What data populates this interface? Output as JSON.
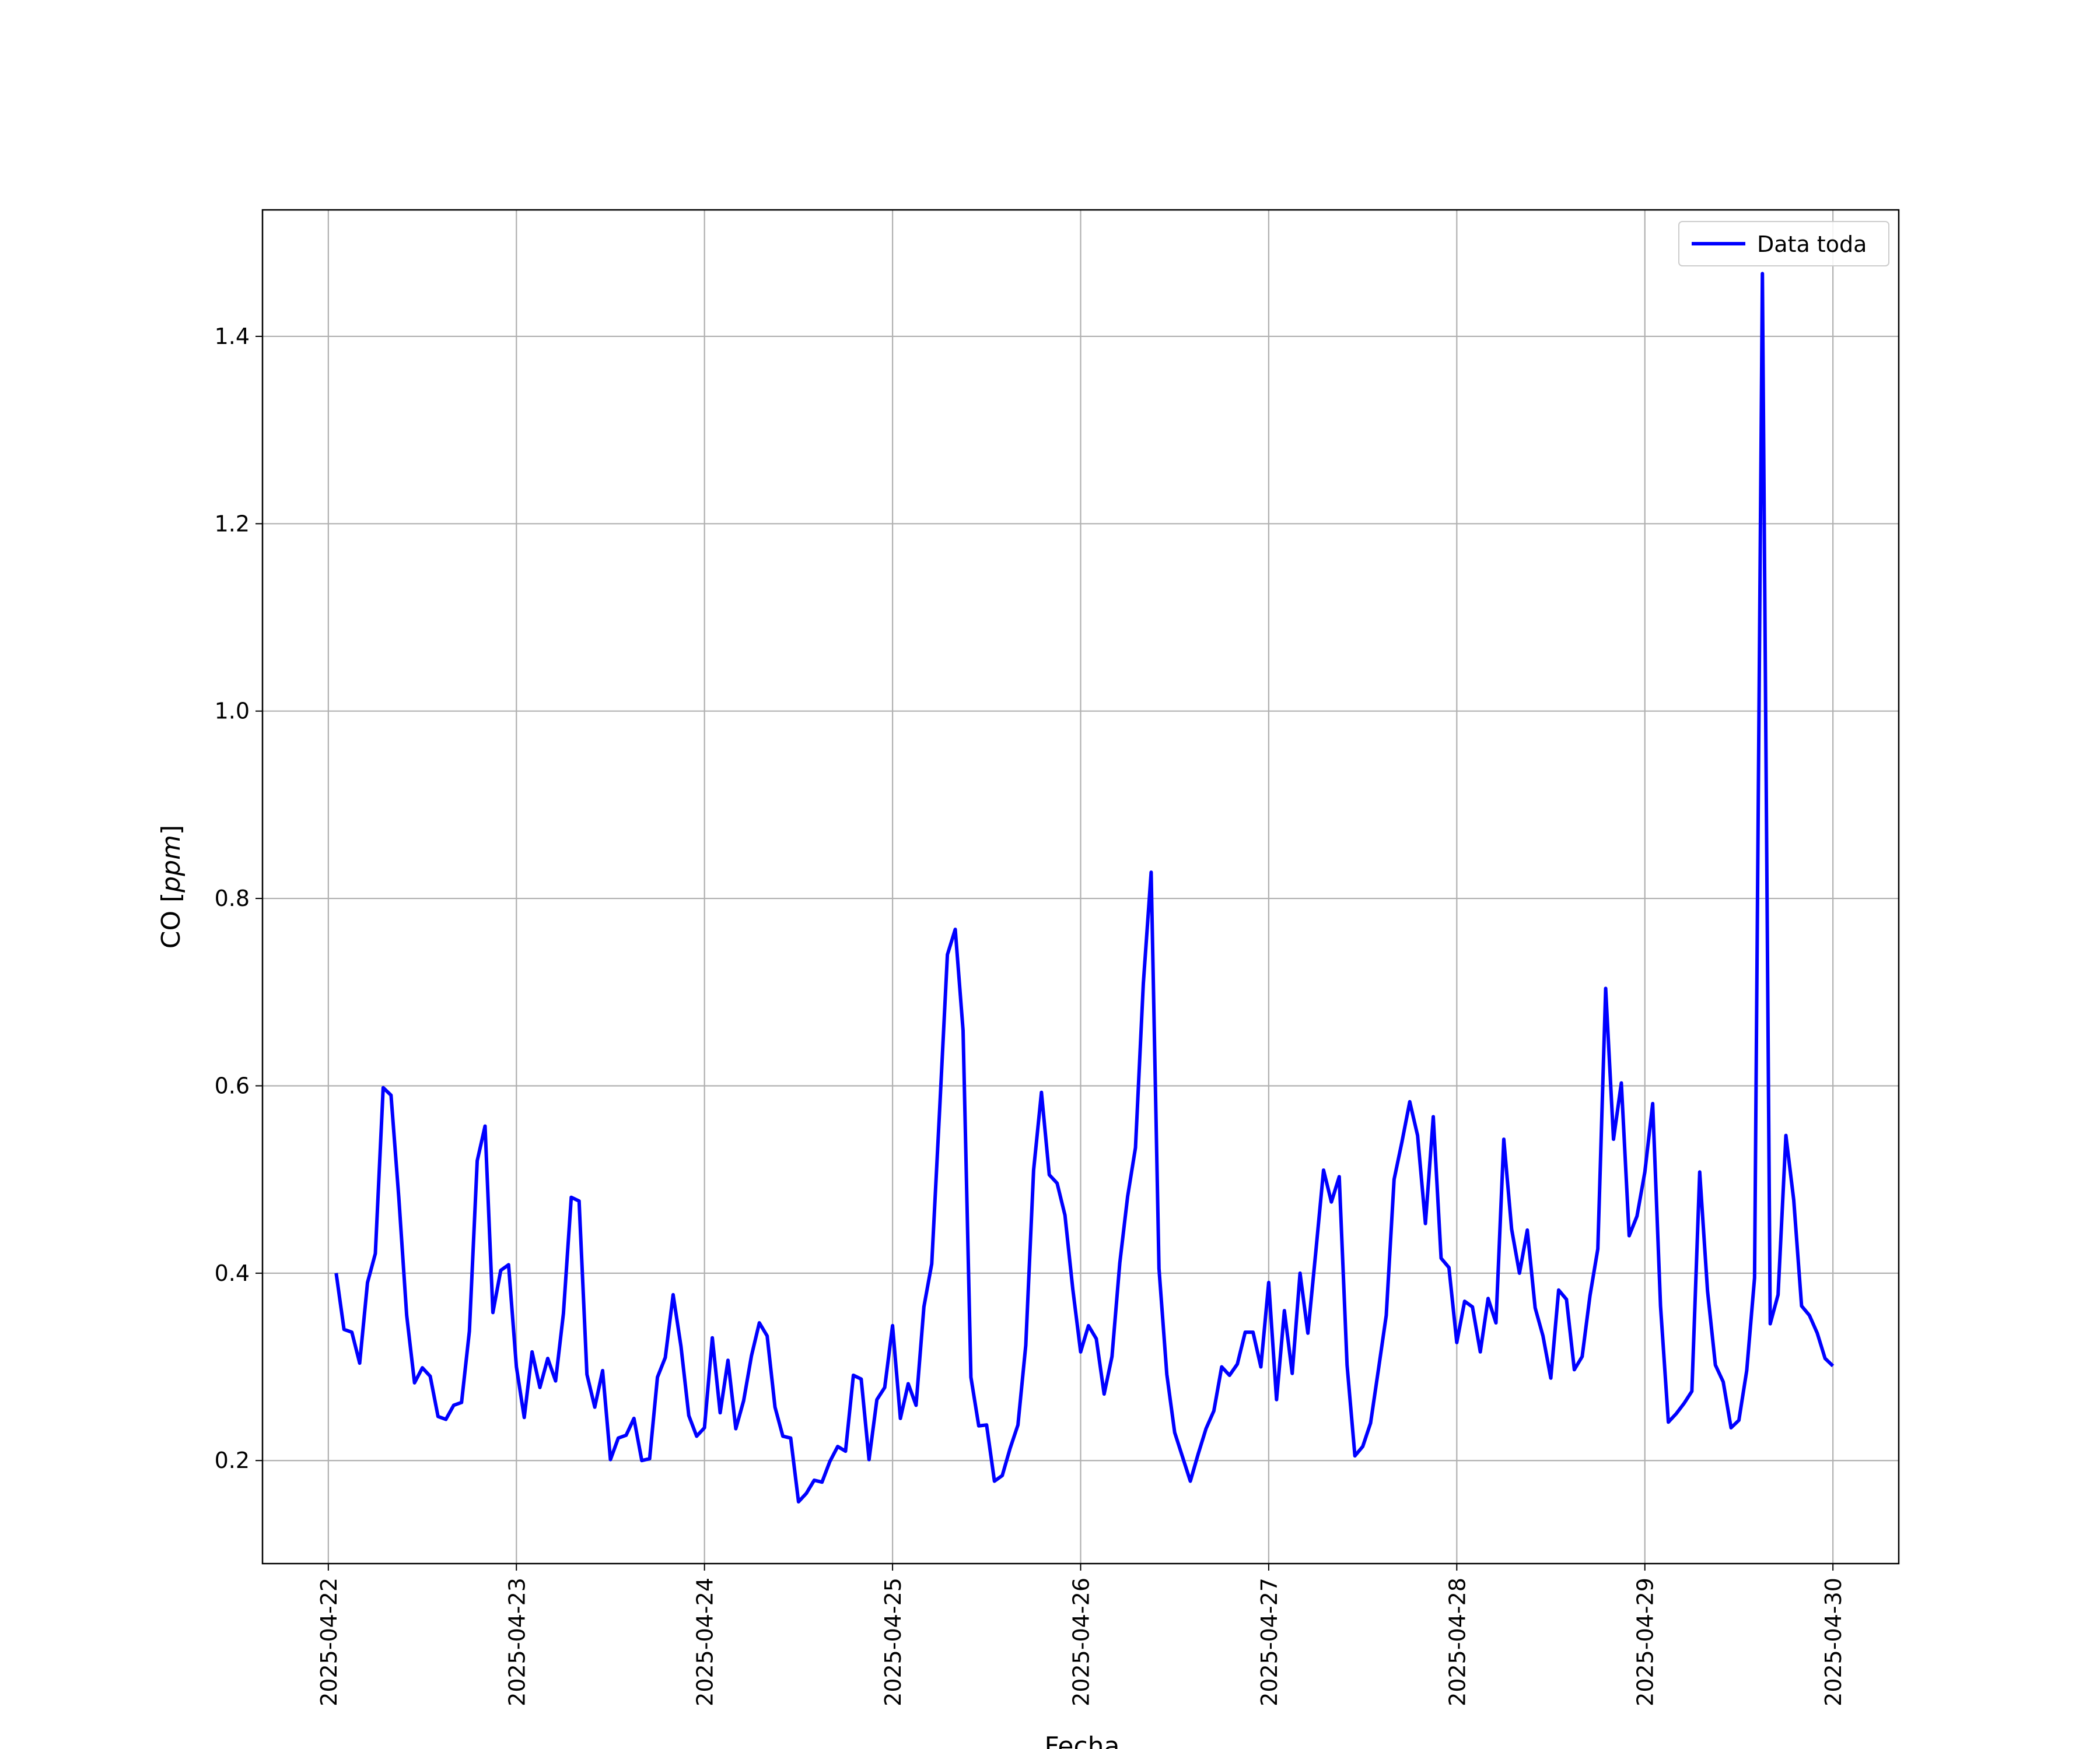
{
  "chart_data": {
    "type": "line",
    "xlabel": "Fecha",
    "ylabel_text": "CO",
    "ylabel_unit": "ppm",
    "ylim": [
      0.09,
      1.535
    ],
    "xlim": [
      "2025-04-21T15:36",
      "2025-04-30T08:24"
    ],
    "grid": true,
    "legend_placement": "top-right",
    "x_ticks": [
      "2025-04-22",
      "2025-04-23",
      "2025-04-24",
      "2025-04-25",
      "2025-04-26",
      "2025-04-27",
      "2025-04-28",
      "2025-04-29",
      "2025-04-30"
    ],
    "y_ticks": [
      "0.2",
      "0.4",
      "0.6",
      "0.8",
      "1.0",
      "1.2",
      "1.4"
    ],
    "x_start": "2025-04-22T01:00",
    "x_step_hours": 1,
    "series": [
      {
        "name": "Data toda",
        "color": "#0000ff",
        "x": [
          "2025-04-22T01:00",
          "2025-04-22T02:00",
          "2025-04-22T03:00",
          "2025-04-22T04:00",
          "2025-04-22T05:00",
          "2025-04-22T06:00",
          "2025-04-22T07:00",
          "2025-04-22T08:00",
          "2025-04-22T09:00",
          "2025-04-22T10:00",
          "2025-04-22T11:00",
          "2025-04-22T12:00",
          "2025-04-22T13:00",
          "2025-04-22T14:00",
          "2025-04-22T15:00",
          "2025-04-22T16:00",
          "2025-04-22T17:00",
          "2025-04-22T18:00",
          "2025-04-22T19:00",
          "2025-04-22T20:00",
          "2025-04-22T21:00",
          "2025-04-22T22:00",
          "2025-04-22T23:00",
          "2025-04-23T00:00",
          "2025-04-23T01:00",
          "2025-04-23T02:00",
          "2025-04-23T03:00",
          "2025-04-23T04:00",
          "2025-04-23T05:00",
          "2025-04-23T06:00",
          "2025-04-23T07:00",
          "2025-04-23T08:00",
          "2025-04-23T09:00",
          "2025-04-23T10:00",
          "2025-04-23T11:00",
          "2025-04-23T12:00",
          "2025-04-23T13:00",
          "2025-04-23T14:00",
          "2025-04-23T15:00",
          "2025-04-23T16:00",
          "2025-04-23T17:00",
          "2025-04-23T18:00",
          "2025-04-23T19:00",
          "2025-04-23T20:00",
          "2025-04-23T21:00",
          "2025-04-23T22:00",
          "2025-04-23T23:00",
          "2025-04-24T00:00",
          "2025-04-24T01:00",
          "2025-04-24T02:00",
          "2025-04-24T03:00",
          "2025-04-24T04:00",
          "2025-04-24T05:00",
          "2025-04-24T06:00",
          "2025-04-24T07:00",
          "2025-04-24T08:00",
          "2025-04-24T09:00",
          "2025-04-24T10:00",
          "2025-04-24T11:00",
          "2025-04-24T12:00",
          "2025-04-24T13:00",
          "2025-04-24T14:00",
          "2025-04-24T15:00",
          "2025-04-24T16:00",
          "2025-04-24T17:00",
          "2025-04-24T18:00",
          "2025-04-24T19:00",
          "2025-04-24T20:00",
          "2025-04-24T21:00",
          "2025-04-24T22:00",
          "2025-04-24T23:00",
          "2025-04-25T00:00",
          "2025-04-25T01:00",
          "2025-04-25T02:00",
          "2025-04-25T03:00",
          "2025-04-25T04:00",
          "2025-04-25T05:00",
          "2025-04-25T06:00",
          "2025-04-25T07:00",
          "2025-04-25T08:00",
          "2025-04-25T09:00",
          "2025-04-25T10:00",
          "2025-04-25T11:00",
          "2025-04-25T12:00",
          "2025-04-25T13:00",
          "2025-04-25T14:00",
          "2025-04-25T15:00",
          "2025-04-25T16:00",
          "2025-04-25T17:00",
          "2025-04-25T18:00",
          "2025-04-25T19:00",
          "2025-04-25T20:00",
          "2025-04-25T21:00",
          "2025-04-25T22:00",
          "2025-04-25T23:00",
          "2025-04-26T00:00",
          "2025-04-26T01:00",
          "2025-04-26T02:00",
          "2025-04-26T03:00",
          "2025-04-26T04:00",
          "2025-04-26T05:00",
          "2025-04-26T06:00",
          "2025-04-26T07:00",
          "2025-04-26T08:00",
          "2025-04-26T09:00",
          "2025-04-26T10:00",
          "2025-04-26T11:00",
          "2025-04-26T12:00",
          "2025-04-26T13:00",
          "2025-04-26T14:00",
          "2025-04-26T15:00",
          "2025-04-26T16:00",
          "2025-04-26T17:00",
          "2025-04-26T18:00",
          "2025-04-26T19:00",
          "2025-04-26T20:00",
          "2025-04-26T21:00",
          "2025-04-26T22:00",
          "2025-04-26T23:00",
          "2025-04-27T00:00",
          "2025-04-27T01:00",
          "2025-04-27T02:00",
          "2025-04-27T03:00",
          "2025-04-27T04:00",
          "2025-04-27T05:00",
          "2025-04-27T06:00",
          "2025-04-27T07:00",
          "2025-04-27T08:00",
          "2025-04-27T09:00",
          "2025-04-27T10:00",
          "2025-04-27T11:00",
          "2025-04-27T12:00",
          "2025-04-27T13:00",
          "2025-04-27T14:00",
          "2025-04-27T15:00",
          "2025-04-27T16:00",
          "2025-04-27T17:00",
          "2025-04-27T18:00",
          "2025-04-27T19:00",
          "2025-04-27T20:00",
          "2025-04-27T21:00",
          "2025-04-27T22:00",
          "2025-04-27T23:00",
          "2025-04-28T00:00",
          "2025-04-28T01:00",
          "2025-04-28T02:00",
          "2025-04-28T03:00",
          "2025-04-28T04:00",
          "2025-04-28T05:00",
          "2025-04-28T06:00",
          "2025-04-28T07:00",
          "2025-04-28T08:00",
          "2025-04-28T09:00",
          "2025-04-28T10:00",
          "2025-04-28T11:00",
          "2025-04-28T12:00",
          "2025-04-28T13:00",
          "2025-04-28T14:00",
          "2025-04-28T15:00",
          "2025-04-28T16:00",
          "2025-04-28T17:00",
          "2025-04-28T18:00",
          "2025-04-28T19:00",
          "2025-04-28T20:00",
          "2025-04-28T21:00",
          "2025-04-28T22:00",
          "2025-04-28T23:00",
          "2025-04-29T00:00",
          "2025-04-29T01:00",
          "2025-04-29T02:00",
          "2025-04-29T03:00",
          "2025-04-29T04:00",
          "2025-04-29T05:00",
          "2025-04-29T06:00",
          "2025-04-29T07:00",
          "2025-04-29T08:00",
          "2025-04-29T09:00",
          "2025-04-29T10:00",
          "2025-04-29T11:00",
          "2025-04-29T12:00",
          "2025-04-29T13:00",
          "2025-04-29T14:00",
          "2025-04-29T15:00",
          "2025-04-29T16:00",
          "2025-04-29T17:00",
          "2025-04-29T18:00",
          "2025-04-29T19:00",
          "2025-04-29T20:00",
          "2025-04-29T21:00",
          "2025-04-29T22:00",
          "2025-04-29T23:00",
          "2025-04-30T00:00"
        ],
        "values": [
          0.4,
          0.34,
          0.337,
          0.304,
          0.39,
          0.421,
          0.598,
          0.59,
          0.48,
          0.355,
          0.283,
          0.299,
          0.29,
          0.247,
          0.244,
          0.259,
          0.262,
          0.338,
          0.52,
          0.557,
          0.358,
          0.403,
          0.409,
          0.3,
          0.246,
          0.316,
          0.278,
          0.309,
          0.285,
          0.357,
          0.481,
          0.477,
          0.292,
          0.257,
          0.296,
          0.201,
          0.224,
          0.227,
          0.245,
          0.2,
          0.202,
          0.289,
          0.31,
          0.377,
          0.322,
          0.248,
          0.226,
          0.235,
          0.331,
          0.251,
          0.307,
          0.234,
          0.264,
          0.312,
          0.347,
          0.333,
          0.257,
          0.226,
          0.224,
          0.156,
          0.165,
          0.179,
          0.177,
          0.199,
          0.215,
          0.21,
          0.291,
          0.287,
          0.201,
          0.265,
          0.278,
          0.344,
          0.245,
          0.282,
          0.259,
          0.364,
          0.41,
          0.573,
          0.74,
          0.767,
          0.659,
          0.289,
          0.237,
          0.238,
          0.178,
          0.184,
          0.213,
          0.238,
          0.323,
          0.51,
          0.593,
          0.505,
          0.496,
          0.462,
          0.383,
          0.316,
          0.344,
          0.33,
          0.271,
          0.311,
          0.411,
          0.482,
          0.534,
          0.709,
          0.828,
          0.405,
          0.292,
          0.23,
          0.204,
          0.178,
          0.207,
          0.234,
          0.253,
          0.3,
          0.291,
          0.303,
          0.337,
          0.337,
          0.3,
          0.39,
          0.265,
          0.36,
          0.293,
          0.4,
          0.336,
          0.422,
          0.51,
          0.476,
          0.503,
          0.302,
          0.205,
          0.215,
          0.24,
          0.297,
          0.355,
          0.5,
          0.54,
          0.583,
          0.547,
          0.453,
          0.567,
          0.416,
          0.406,
          0.326,
          0.37,
          0.364,
          0.316,
          0.373,
          0.347,
          0.543,
          0.447,
          0.4,
          0.446,
          0.363,
          0.333,
          0.288,
          0.382,
          0.372,
          0.297,
          0.311,
          0.376,
          0.426,
          0.704,
          0.543,
          0.603,
          0.44,
          0.461,
          0.508,
          0.581,
          0.365,
          0.241,
          0.25,
          0.261,
          0.274,
          0.508,
          0.381,
          0.302,
          0.284,
          0.235,
          0.243,
          0.296,
          0.395,
          1.467,
          0.346,
          0.377,
          0.547,
          0.478,
          0.365,
          0.355,
          0.336,
          0.309,
          0.301
        ]
      }
    ]
  }
}
